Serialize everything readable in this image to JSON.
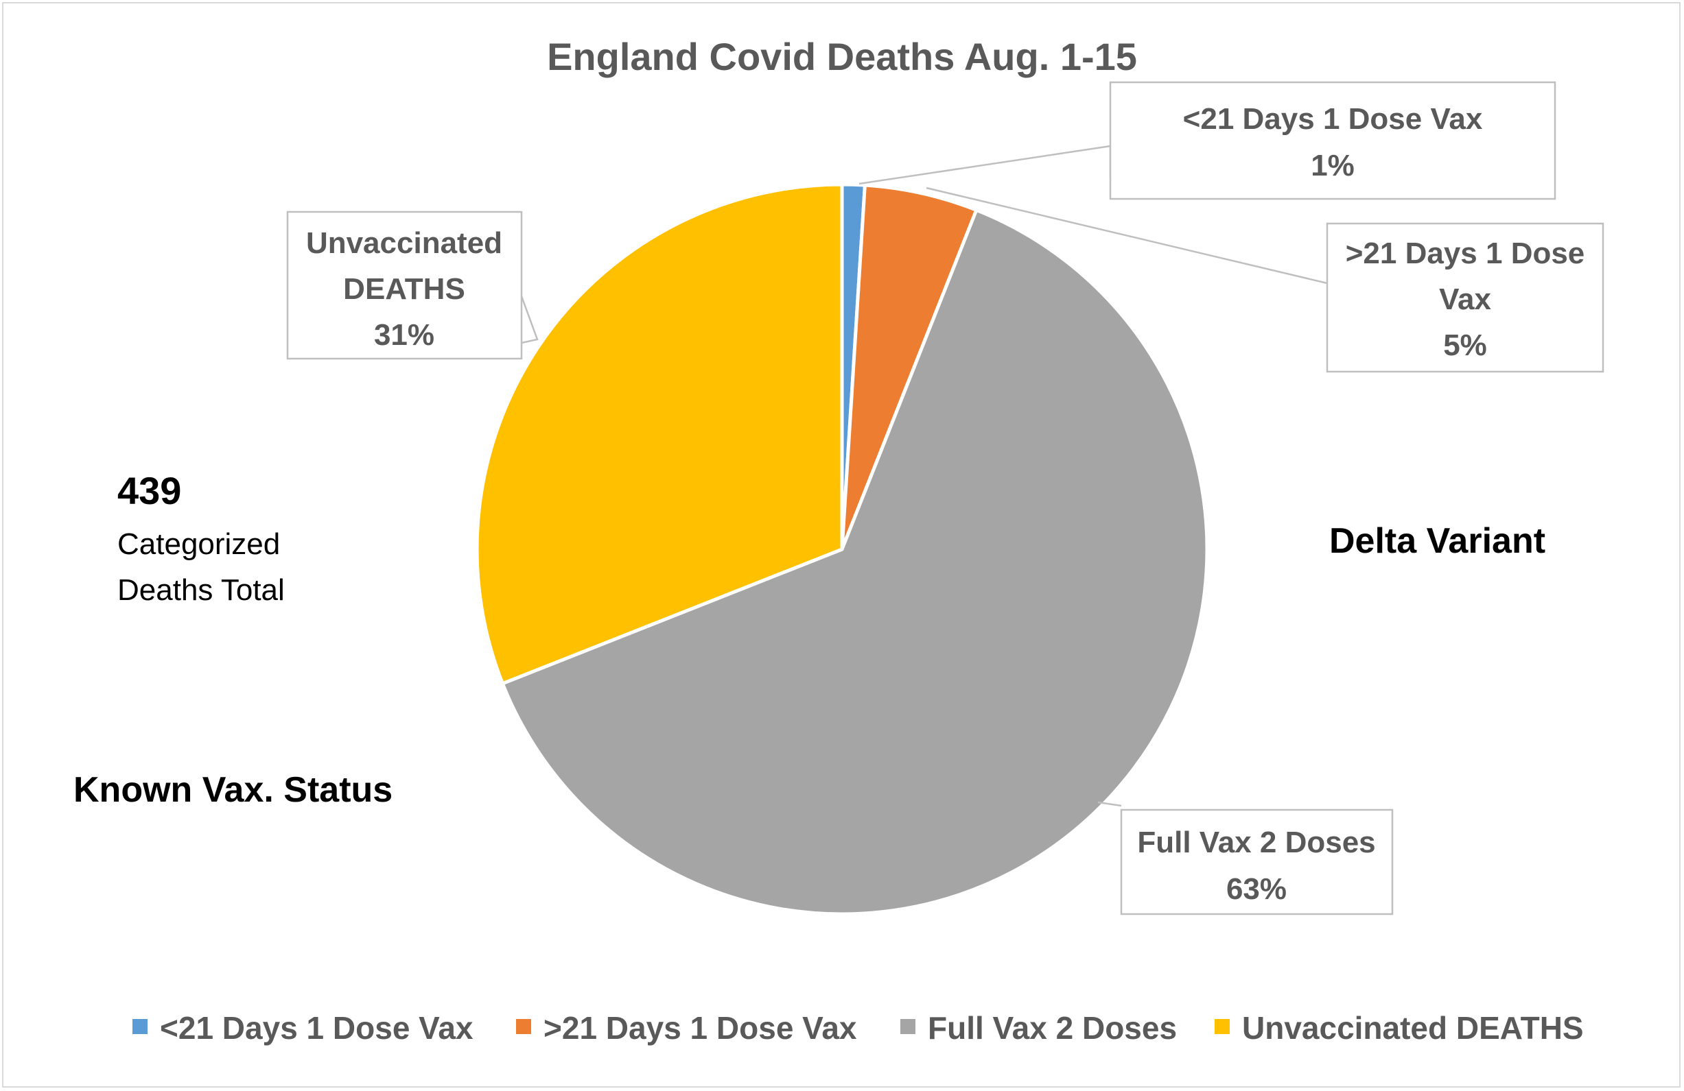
{
  "chart_data": {
    "type": "pie",
    "title": "England Covid Deaths Aug. 1-15",
    "slices": [
      {
        "name": "<21 Days 1 Dose Vax",
        "value": 1,
        "label": "1%",
        "color": "#5b9bd5"
      },
      {
        "name": ">21 Days 1 Dose Vax",
        "value": 5,
        "label": "5%",
        "color": "#ed7d31"
      },
      {
        "name": "Full Vax 2 Doses",
        "value": 63,
        "label": "63%",
        "color": "#a5a5a5"
      },
      {
        "name": "Unvaccinated DEATHS",
        "value": 31,
        "label": "31%",
        "color": "#ffc000"
      }
    ],
    "legend_position": "bottom",
    "annotations": {
      "total_number": "439",
      "total_line1": "Categorized",
      "total_line2": "Deaths Total",
      "variant": "Delta Variant",
      "status": "Known Vax. Status"
    }
  },
  "callouts": {
    "lt21": {
      "line1": "<21 Days 1 Dose Vax",
      "line2": "1%"
    },
    "gt21": {
      "line1": ">21 Days 1 Dose",
      "line2": "Vax",
      "line3": "5%"
    },
    "full": {
      "line1": "Full Vax 2 Doses",
      "line2": "63%"
    },
    "unvax": {
      "line1": "Unvaccinated",
      "line2": "DEATHS",
      "line3": "31%"
    }
  },
  "legend": [
    {
      "label": "<21 Days 1 Dose Vax",
      "color": "#5b9bd5"
    },
    {
      "label": ">21 Days 1 Dose Vax",
      "color": "#ed7d31"
    },
    {
      "label": "Full Vax 2 Doses",
      "color": "#a5a5a5"
    },
    {
      "label": "Unvaccinated DEATHS",
      "color": "#ffc000"
    }
  ]
}
